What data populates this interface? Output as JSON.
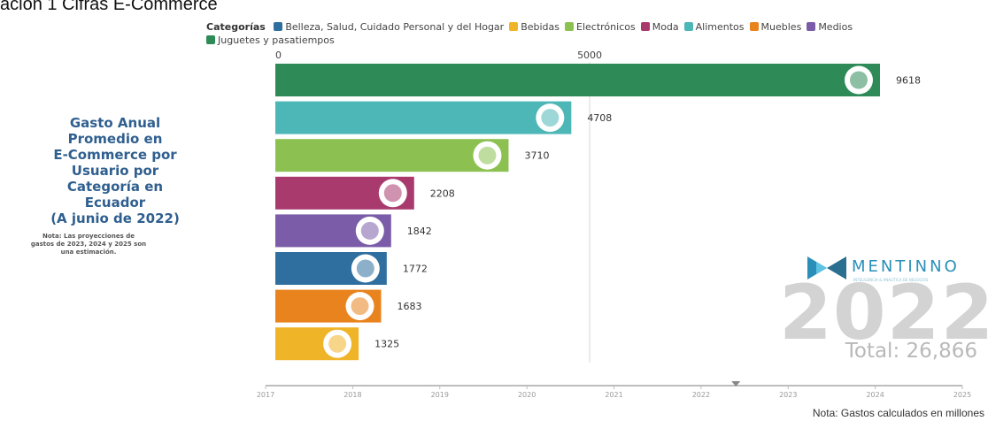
{
  "header_text": "ación 1 Cifras E-Commerce",
  "side_panel": {
    "title_lines": [
      "Gasto Anual",
      "Promedio en",
      "E-Commerce por",
      "Usuario por",
      "Categoría en",
      "Ecuador",
      "(A junio de 2022)"
    ],
    "note_lines": [
      "Nota: Las proyecciones de",
      "gastos de 2023, 2024 y 2025 son",
      "una estimación."
    ]
  },
  "legend": {
    "title": "Categorías",
    "items": [
      {
        "label": "Belleza, Salud, Cuidado Personal y del Hogar",
        "color": "#2f6f9f"
      },
      {
        "label": "Bebidas",
        "color": "#f0b429"
      },
      {
        "label": "Electrónicos",
        "color": "#8cc152"
      },
      {
        "label": "Moda",
        "color": "#a93a6e"
      },
      {
        "label": "Alimentos",
        "color": "#4db6b6"
      },
      {
        "label": "Muebles",
        "color": "#e8831e"
      },
      {
        "label": "Medios",
        "color": "#7b5ca8"
      },
      {
        "label": "Juguetes y pasatiempos",
        "color": "#2e8b57"
      }
    ]
  },
  "brand": {
    "name": "MENTINNO",
    "tagline": "INTELIGENCIA & ANALÍTICA DE NEGOCIOS",
    "logo_icon": "mentinno-logo-icon"
  },
  "year": "2022",
  "total_label": "Total: 26,866",
  "footnote": "Nota: Gastos calculados en millones",
  "chart_data": {
    "type": "bar",
    "orientation": "horizontal",
    "x_axis_ticks": [
      "0",
      "5000"
    ],
    "xlim": [
      0,
      9800
    ],
    "bars": [
      {
        "category": "Juguetes y pasatiempos",
        "value": 9618,
        "label": "9618",
        "color": "#2e8b57",
        "icon": "rocking-horse-icon"
      },
      {
        "category": "Alimentos",
        "value": 4708,
        "label": "4708",
        "color": "#4db6b6",
        "icon": "grocery-bag-icon"
      },
      {
        "category": "Electrónicos",
        "value": 3710,
        "label": "3710",
        "color": "#8cc152",
        "icon": "monitor-icon"
      },
      {
        "category": "Moda",
        "value": 2208,
        "label": "2208",
        "color": "#a93a6e",
        "icon": "tshirt-icon"
      },
      {
        "category": "Medios",
        "value": 1842,
        "label": "1842",
        "color": "#7b5ca8",
        "icon": "media-icon"
      },
      {
        "category": "Belleza, Salud, Cuidado Personal y del Hogar",
        "value": 1772,
        "label": "1772",
        "color": "#2f6f9f",
        "icon": "beauty-icon"
      },
      {
        "category": "Muebles",
        "value": 1683,
        "label": "1683",
        "color": "#e8831e",
        "icon": "sofa-icon"
      },
      {
        "category": "Bebidas",
        "value": 1325,
        "label": "1325",
        "color": "#f0b429",
        "icon": "bottles-icon"
      }
    ],
    "timeline": {
      "years": [
        "2017",
        "2018",
        "2019",
        "2020",
        "2021",
        "2022",
        "2023",
        "2024",
        "2025"
      ],
      "current": 2022.4,
      "range": [
        2017,
        2025
      ]
    },
    "grid": true
  }
}
